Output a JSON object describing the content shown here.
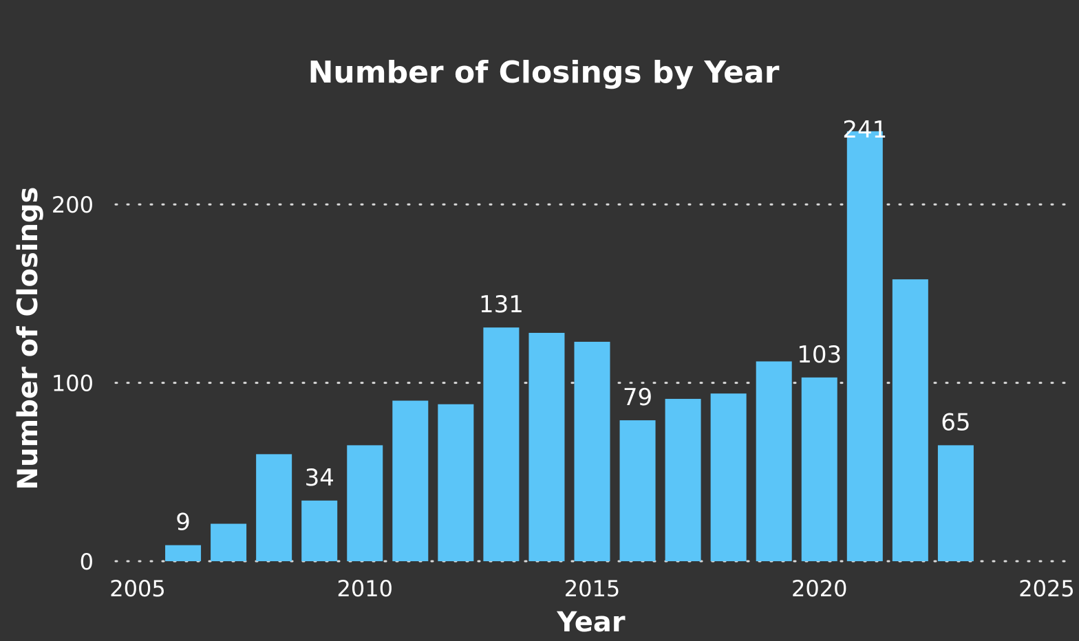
{
  "chart_data": {
    "type": "bar",
    "title": "Number of Closings by Year",
    "xlabel": "Year",
    "ylabel": "Number of Closings",
    "x": [
      2006,
      2007,
      2008,
      2009,
      2010,
      2011,
      2012,
      2013,
      2014,
      2015,
      2016,
      2017,
      2018,
      2019,
      2020,
      2021,
      2022,
      2023
    ],
    "values": [
      9,
      21,
      60,
      34,
      65,
      90,
      88,
      131,
      128,
      123,
      79,
      91,
      94,
      112,
      103,
      241,
      158,
      65
    ],
    "data_labels": {
      "2006": "9",
      "2009": "34",
      "2013": "131",
      "2016": "79",
      "2020": "103",
      "2021": "241",
      "2023": "65"
    },
    "xlim": [
      2005,
      2025
    ],
    "ylim": [
      0,
      241
    ],
    "x_ticks": [
      "2005",
      "2010",
      "2015",
      "2020",
      "2025"
    ],
    "y_ticks": [
      "0",
      "100",
      "200"
    ],
    "grid": true,
    "grid_style": "dotted",
    "bar_color": "#5BC5F8",
    "background_color": "#333333",
    "text_color": "#FFFFFF"
  }
}
